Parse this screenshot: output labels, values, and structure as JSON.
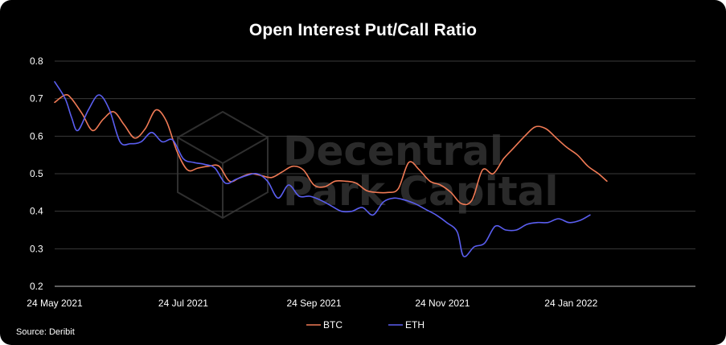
{
  "chart_data": {
    "type": "line",
    "title": "Open Interest Put/Call Ratio",
    "xlabel": "",
    "ylabel": "",
    "ylim": [
      0.2,
      0.8
    ],
    "yticks": [
      "0.2",
      "0.3",
      "0.4",
      "0.5",
      "0.6",
      "0.7",
      "0.8"
    ],
    "xtick_labels": [
      "24 May 2021",
      "24 Jul 2021",
      "24 Sep 2021",
      "24 Nov 2021",
      "24 Jan 2022"
    ],
    "x_start": "2021-05-24",
    "x_end": "2022-03-24",
    "grid": true,
    "legend_position": "bottom-center",
    "series": [
      {
        "name": "BTC",
        "color": "#f07a55",
        "points": [
          [
            "2021-05-24",
            0.69
          ],
          [
            "2021-05-29",
            0.71
          ],
          [
            "2021-06-01",
            0.7
          ],
          [
            "2021-06-06",
            0.66
          ],
          [
            "2021-06-11",
            0.615
          ],
          [
            "2021-06-16",
            0.645
          ],
          [
            "2021-06-21",
            0.665
          ],
          [
            "2021-06-26",
            0.63
          ],
          [
            "2021-07-01",
            0.595
          ],
          [
            "2021-07-06",
            0.62
          ],
          [
            "2021-07-11",
            0.67
          ],
          [
            "2021-07-16",
            0.64
          ],
          [
            "2021-07-21",
            0.56
          ],
          [
            "2021-07-26",
            0.51
          ],
          [
            "2021-07-31",
            0.515
          ],
          [
            "2021-08-05",
            0.52
          ],
          [
            "2021-08-10",
            0.52
          ],
          [
            "2021-08-15",
            0.48
          ],
          [
            "2021-08-20",
            0.49
          ],
          [
            "2021-08-25",
            0.5
          ],
          [
            "2021-08-30",
            0.495
          ],
          [
            "2021-09-04",
            0.49
          ],
          [
            "2021-09-09",
            0.505
          ],
          [
            "2021-09-14",
            0.52
          ],
          [
            "2021-09-19",
            0.51
          ],
          [
            "2021-09-24",
            0.47
          ],
          [
            "2021-09-29",
            0.465
          ],
          [
            "2021-10-04",
            0.48
          ],
          [
            "2021-10-09",
            0.48
          ],
          [
            "2021-10-14",
            0.475
          ],
          [
            "2021-10-19",
            0.455
          ],
          [
            "2021-10-24",
            0.45
          ],
          [
            "2021-10-29",
            0.45
          ],
          [
            "2021-11-03",
            0.46
          ],
          [
            "2021-11-08",
            0.53
          ],
          [
            "2021-11-13",
            0.51
          ],
          [
            "2021-11-18",
            0.48
          ],
          [
            "2021-11-23",
            0.47
          ],
          [
            "2021-11-28",
            0.45
          ],
          [
            "2021-12-03",
            0.42
          ],
          [
            "2021-12-08",
            0.43
          ],
          [
            "2021-12-13",
            0.51
          ],
          [
            "2021-12-18",
            0.5
          ],
          [
            "2021-12-23",
            0.54
          ],
          [
            "2021-12-28",
            0.57
          ],
          [
            "2022-01-02",
            0.6
          ],
          [
            "2022-01-07",
            0.625
          ],
          [
            "2022-01-12",
            0.62
          ],
          [
            "2022-01-17",
            0.595
          ],
          [
            "2022-01-22",
            0.57
          ],
          [
            "2022-01-27",
            0.55
          ],
          [
            "2022-02-01",
            0.52
          ],
          [
            "2022-02-06",
            0.5
          ],
          [
            "2022-02-10",
            0.48
          ]
        ]
      },
      {
        "name": "ETH",
        "color": "#5a5ef0",
        "points": [
          [
            "2021-05-24",
            0.745
          ],
          [
            "2021-05-29",
            0.7
          ],
          [
            "2021-06-01",
            0.65
          ],
          [
            "2021-06-04",
            0.615
          ],
          [
            "2021-06-09",
            0.67
          ],
          [
            "2021-06-14",
            0.71
          ],
          [
            "2021-06-19",
            0.67
          ],
          [
            "2021-06-24",
            0.585
          ],
          [
            "2021-06-29",
            0.58
          ],
          [
            "2021-07-04",
            0.585
          ],
          [
            "2021-07-09",
            0.61
          ],
          [
            "2021-07-14",
            0.585
          ],
          [
            "2021-07-19",
            0.59
          ],
          [
            "2021-07-24",
            0.54
          ],
          [
            "2021-07-29",
            0.53
          ],
          [
            "2021-08-03",
            0.525
          ],
          [
            "2021-08-08",
            0.515
          ],
          [
            "2021-08-13",
            0.475
          ],
          [
            "2021-08-18",
            0.485
          ],
          [
            "2021-08-23",
            0.495
          ],
          [
            "2021-08-28",
            0.5
          ],
          [
            "2021-09-02",
            0.48
          ],
          [
            "2021-09-07",
            0.435
          ],
          [
            "2021-09-12",
            0.47
          ],
          [
            "2021-09-17",
            0.44
          ],
          [
            "2021-09-22",
            0.44
          ],
          [
            "2021-09-27",
            0.43
          ],
          [
            "2021-10-02",
            0.415
          ],
          [
            "2021-10-07",
            0.4
          ],
          [
            "2021-10-12",
            0.4
          ],
          [
            "2021-10-17",
            0.41
          ],
          [
            "2021-10-22",
            0.39
          ],
          [
            "2021-10-27",
            0.425
          ],
          [
            "2021-11-01",
            0.435
          ],
          [
            "2021-11-06",
            0.43
          ],
          [
            "2021-11-11",
            0.42
          ],
          [
            "2021-11-16",
            0.405
          ],
          [
            "2021-11-21",
            0.39
          ],
          [
            "2021-11-26",
            0.37
          ],
          [
            "2021-12-01",
            0.345
          ],
          [
            "2021-12-04",
            0.28
          ],
          [
            "2021-12-09",
            0.305
          ],
          [
            "2021-12-14",
            0.315
          ],
          [
            "2021-12-19",
            0.36
          ],
          [
            "2021-12-24",
            0.35
          ],
          [
            "2021-12-29",
            0.35
          ],
          [
            "2022-01-03",
            0.365
          ],
          [
            "2022-01-08",
            0.37
          ],
          [
            "2022-01-13",
            0.37
          ],
          [
            "2022-01-18",
            0.38
          ],
          [
            "2022-01-23",
            0.37
          ],
          [
            "2022-01-28",
            0.375
          ],
          [
            "2022-02-02",
            0.39
          ]
        ]
      }
    ]
  },
  "watermark": {
    "line1": "Decentral",
    "line2": "Park Capital"
  },
  "source": "Source: Deribit"
}
